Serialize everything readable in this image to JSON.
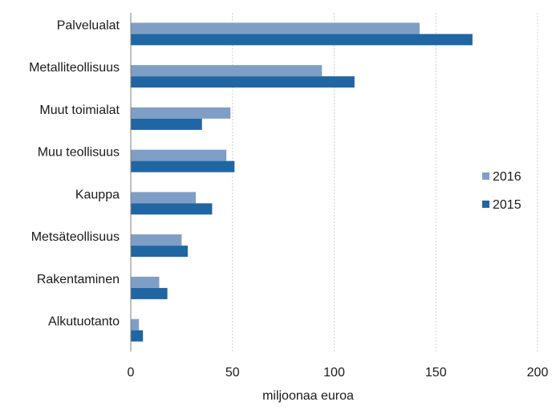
{
  "chart_data": {
    "type": "bar",
    "orientation": "horizontal",
    "categories": [
      "Palvelualat",
      "Metalliteollisuus",
      "Muut toimialat",
      "Muu teollisuus",
      "Kauppa",
      "Metsäteollisuus",
      "Rakentaminen",
      "Alkutuotanto"
    ],
    "series": [
      {
        "name": "2016",
        "values": [
          142,
          94,
          49,
          47,
          32,
          25,
          14,
          4
        ],
        "color": "#7f9ec6"
      },
      {
        "name": "2015",
        "values": [
          168,
          110,
          35,
          51,
          40,
          28,
          18,
          6
        ],
        "color": "#1f66a3"
      }
    ],
    "xlabel": "miljoonaa euroa",
    "ylabel": "",
    "xlim": [
      0,
      200
    ],
    "x_ticks": [
      "0",
      "50",
      "100",
      "150",
      "200"
    ],
    "grid": "vertical",
    "legend_position": "right"
  }
}
